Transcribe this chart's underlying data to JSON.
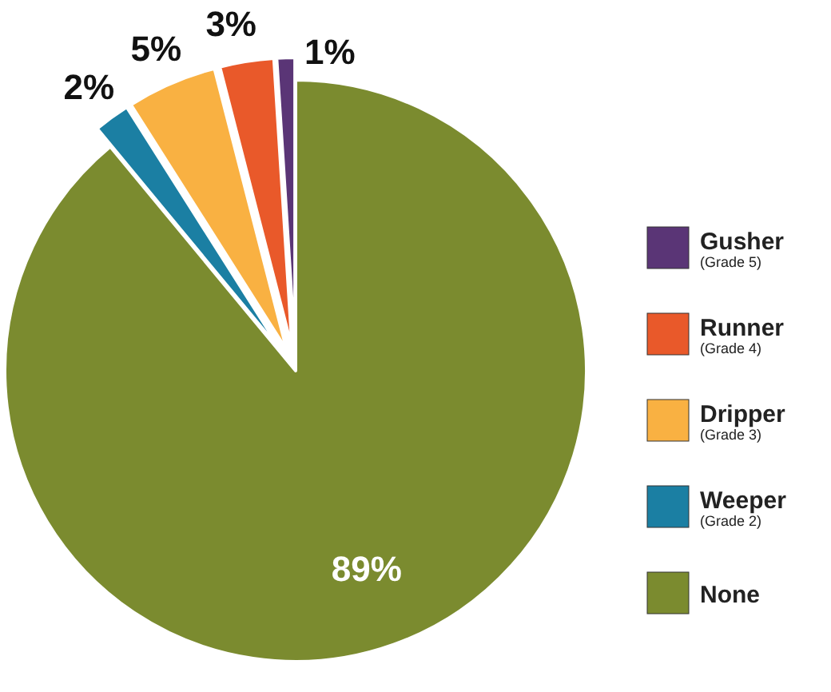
{
  "chart_data": {
    "type": "pie",
    "categories": [
      "None",
      "Weeper (Grade 2)",
      "Dripper (Grade 3)",
      "Runner (Grade 4)",
      "Gusher (Grade 5)"
    ],
    "values": [
      89,
      2,
      5,
      3,
      1
    ],
    "value_labels": [
      "89%",
      "2%",
      "5%",
      "3%",
      "1%"
    ],
    "colors": [
      "#7b8b2f",
      "#1b7fa3",
      "#f9b142",
      "#e9592a",
      "#5a3576"
    ],
    "legend": "right"
  }
}
